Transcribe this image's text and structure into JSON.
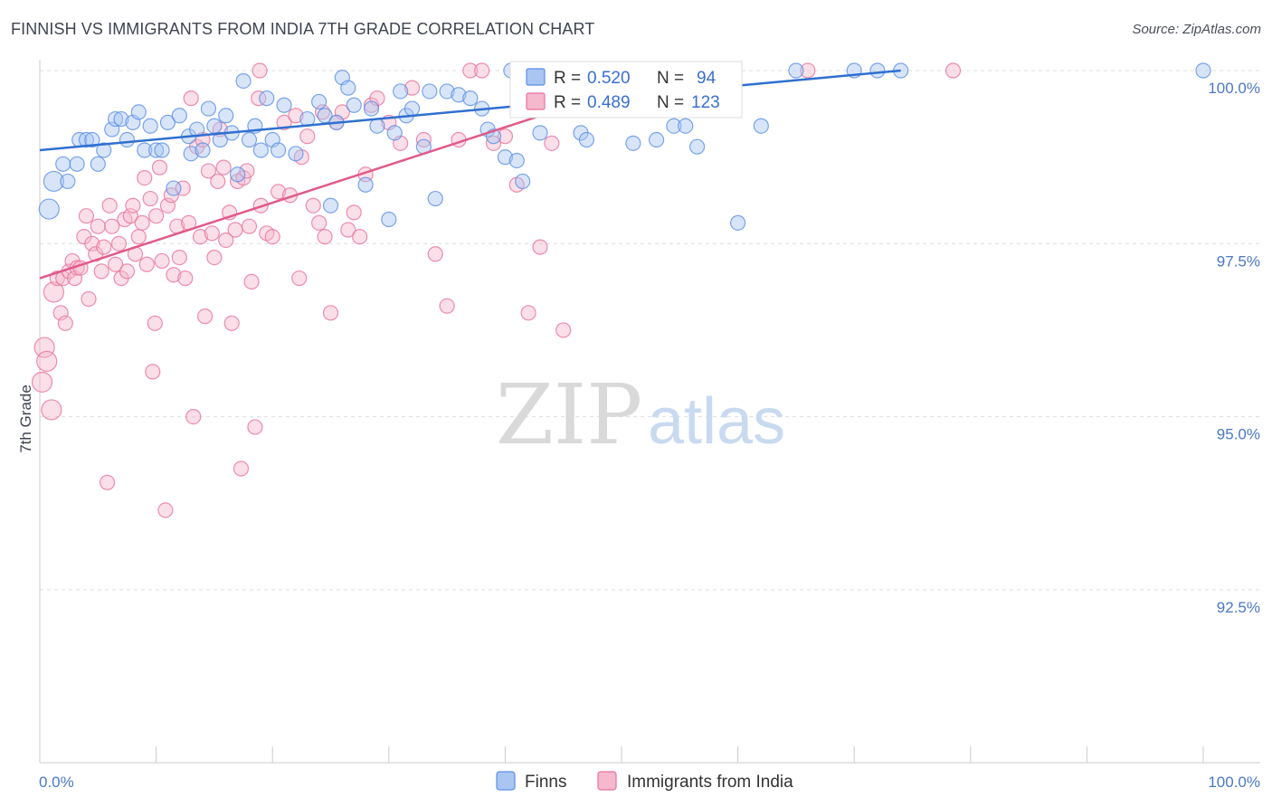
{
  "title": "FINNISH VS IMMIGRANTS FROM INDIA 7TH GRADE CORRELATION CHART",
  "source": "Source: ZipAtlas.com",
  "watermark": {
    "zip": "ZIP",
    "atlas": "atlas"
  },
  "colors": {
    "finns": "#5b8fe6",
    "finns_fill": "#a9c5f2",
    "india": "#e8729c",
    "india_fill": "#f5b8cc",
    "tick": "#4a78c8",
    "grid": "#dddddd"
  },
  "legend_top": {
    "finns": {
      "r_label": "R = ",
      "r_value": "0.520",
      "n_label": "N = ",
      "n_value": "94"
    },
    "india": {
      "r_label": "R = ",
      "r_value": "0.489",
      "n_label": "N = ",
      "n_value": "123"
    }
  },
  "chart_data": {
    "type": "scatter",
    "title": "FINNISH VS IMMIGRANTS FROM INDIA 7TH GRADE CORRELATION CHART",
    "xlabel": "",
    "ylabel": "7th Grade",
    "xlim": [
      0,
      100
    ],
    "ylim": [
      90.5,
      100.4
    ],
    "x_tick_labels": [
      "0.0%",
      "100.0%"
    ],
    "y_ticks": [
      {
        "value": 100.0,
        "label": "100.0%"
      },
      {
        "value": 97.5,
        "label": "97.5%"
      },
      {
        "value": 95.0,
        "label": "95.0%"
      },
      {
        "value": 92.5,
        "label": "92.5%"
      }
    ],
    "legend": [
      "Finns",
      "Immigrants from India"
    ],
    "series": [
      {
        "name": "Finns",
        "r": 0.52,
        "n": 94,
        "trend": {
          "x": [
            0,
            74
          ],
          "y": [
            98.85,
            100.0
          ]
        },
        "points": [
          [
            0.8,
            98.0
          ],
          [
            1.2,
            98.4
          ],
          [
            2.0,
            98.65
          ],
          [
            2.4,
            98.4
          ],
          [
            3.2,
            98.65
          ],
          [
            3.4,
            99.0
          ],
          [
            4.0,
            99.0
          ],
          [
            4.5,
            99.0
          ],
          [
            5.0,
            98.65
          ],
          [
            5.5,
            98.85
          ],
          [
            6.2,
            99.15
          ],
          [
            6.5,
            99.3
          ],
          [
            7.0,
            99.3
          ],
          [
            7.5,
            99.0
          ],
          [
            8.0,
            99.25
          ],
          [
            8.5,
            99.4
          ],
          [
            9.0,
            98.85
          ],
          [
            9.5,
            99.2
          ],
          [
            10.0,
            98.85
          ],
          [
            10.5,
            98.85
          ],
          [
            11.0,
            99.25
          ],
          [
            11.5,
            98.3
          ],
          [
            12.0,
            99.35
          ],
          [
            12.8,
            99.05
          ],
          [
            13.0,
            98.8
          ],
          [
            13.5,
            99.15
          ],
          [
            14.0,
            98.85
          ],
          [
            14.5,
            99.45
          ],
          [
            15.0,
            99.2
          ],
          [
            15.5,
            99.0
          ],
          [
            16.0,
            99.35
          ],
          [
            16.5,
            99.1
          ],
          [
            17.0,
            98.5
          ],
          [
            17.5,
            99.85
          ],
          [
            18.0,
            99.0
          ],
          [
            18.5,
            99.2
          ],
          [
            19.0,
            98.85
          ],
          [
            19.5,
            99.6
          ],
          [
            20.0,
            99.0
          ],
          [
            20.5,
            98.85
          ],
          [
            21.0,
            99.5
          ],
          [
            22.0,
            98.8
          ],
          [
            23.0,
            99.3
          ],
          [
            24.0,
            99.55
          ],
          [
            24.5,
            99.35
          ],
          [
            25.0,
            98.05
          ],
          [
            25.5,
            99.25
          ],
          [
            26.0,
            99.9
          ],
          [
            26.5,
            99.75
          ],
          [
            27.0,
            99.5
          ],
          [
            28.0,
            98.35
          ],
          [
            28.5,
            99.45
          ],
          [
            29.0,
            99.2
          ],
          [
            30.0,
            97.85
          ],
          [
            30.5,
            99.1
          ],
          [
            31.0,
            99.7
          ],
          [
            31.5,
            99.35
          ],
          [
            32.0,
            99.45
          ],
          [
            33.0,
            98.9
          ],
          [
            33.5,
            99.7
          ],
          [
            34.0,
            98.15
          ],
          [
            35.0,
            99.7
          ],
          [
            36.0,
            99.65
          ],
          [
            37.0,
            99.6
          ],
          [
            38.0,
            99.45
          ],
          [
            38.5,
            99.15
          ],
          [
            39.0,
            99.05
          ],
          [
            40.0,
            98.75
          ],
          [
            41.0,
            98.7
          ],
          [
            41.5,
            98.4
          ],
          [
            42.0,
            100.0
          ],
          [
            43.0,
            99.1
          ],
          [
            44.0,
            99.65
          ],
          [
            45.0,
            100.0
          ],
          [
            45.5,
            99.45
          ],
          [
            46.5,
            99.1
          ],
          [
            47.0,
            99.0
          ],
          [
            48.0,
            99.65
          ],
          [
            49.0,
            100.0
          ],
          [
            50.0,
            99.5
          ],
          [
            51.0,
            98.95
          ],
          [
            53.0,
            99.0
          ],
          [
            54.5,
            99.2
          ],
          [
            55.5,
            99.2
          ],
          [
            56.5,
            98.9
          ],
          [
            57.0,
            100.0
          ],
          [
            60.0,
            97.8
          ],
          [
            62.0,
            99.2
          ],
          [
            65.0,
            100.0
          ],
          [
            70.0,
            100.0
          ],
          [
            72.0,
            100.0
          ],
          [
            74.0,
            100.0
          ],
          [
            100.0,
            100.0
          ],
          [
            40.5,
            100.0
          ],
          [
            43.5,
            100.0
          ]
        ]
      },
      {
        "name": "Immigrants from India",
        "r": 0.489,
        "n": 123,
        "trend": {
          "x": [
            0,
            55
          ],
          "y": [
            97.0,
            100.0
          ]
        },
        "points": [
          [
            0.2,
            95.5
          ],
          [
            0.4,
            96.0
          ],
          [
            0.6,
            95.8
          ],
          [
            1.0,
            95.1
          ],
          [
            1.2,
            96.8
          ],
          [
            1.5,
            97.0
          ],
          [
            1.8,
            96.5
          ],
          [
            2.0,
            97.0
          ],
          [
            2.2,
            96.35
          ],
          [
            2.5,
            97.1
          ],
          [
            2.8,
            97.25
          ],
          [
            3.0,
            97.0
          ],
          [
            3.2,
            97.15
          ],
          [
            3.5,
            97.15
          ],
          [
            3.8,
            97.6
          ],
          [
            4.0,
            97.9
          ],
          [
            4.2,
            96.7
          ],
          [
            4.5,
            97.5
          ],
          [
            4.8,
            97.35
          ],
          [
            5.0,
            97.75
          ],
          [
            5.3,
            97.1
          ],
          [
            5.5,
            97.45
          ],
          [
            5.8,
            94.05
          ],
          [
            6.0,
            98.05
          ],
          [
            6.2,
            97.75
          ],
          [
            6.5,
            97.2
          ],
          [
            6.8,
            97.5
          ],
          [
            7.0,
            97.0
          ],
          [
            7.3,
            97.85
          ],
          [
            7.5,
            97.1
          ],
          [
            7.8,
            97.9
          ],
          [
            8.0,
            98.05
          ],
          [
            8.2,
            97.35
          ],
          [
            8.5,
            97.6
          ],
          [
            8.8,
            97.8
          ],
          [
            9.0,
            98.45
          ],
          [
            9.2,
            97.2
          ],
          [
            9.5,
            98.15
          ],
          [
            9.7,
            95.65
          ],
          [
            9.9,
            96.35
          ],
          [
            10.0,
            97.9
          ],
          [
            10.3,
            98.6
          ],
          [
            10.5,
            97.25
          ],
          [
            10.8,
            93.65
          ],
          [
            11.0,
            98.05
          ],
          [
            11.3,
            98.2
          ],
          [
            11.5,
            97.05
          ],
          [
            11.8,
            97.75
          ],
          [
            12.0,
            97.3
          ],
          [
            12.3,
            98.3
          ],
          [
            12.5,
            97.0
          ],
          [
            12.8,
            97.8
          ],
          [
            13.0,
            99.6
          ],
          [
            13.2,
            95.0
          ],
          [
            13.5,
            98.9
          ],
          [
            13.8,
            97.6
          ],
          [
            14.0,
            99.0
          ],
          [
            14.2,
            96.45
          ],
          [
            14.5,
            98.55
          ],
          [
            14.8,
            97.65
          ],
          [
            15.0,
            97.3
          ],
          [
            15.3,
            98.4
          ],
          [
            15.5,
            99.15
          ],
          [
            15.8,
            98.6
          ],
          [
            16.0,
            97.55
          ],
          [
            16.3,
            97.95
          ],
          [
            16.5,
            96.35
          ],
          [
            16.8,
            97.7
          ],
          [
            17.0,
            98.4
          ],
          [
            17.3,
            94.25
          ],
          [
            17.5,
            98.45
          ],
          [
            17.8,
            98.55
          ],
          [
            18.0,
            97.75
          ],
          [
            18.2,
            96.95
          ],
          [
            18.5,
            94.85
          ],
          [
            18.8,
            99.6
          ],
          [
            19.0,
            98.05
          ],
          [
            19.5,
            97.65
          ],
          [
            20.0,
            97.6
          ],
          [
            20.5,
            98.25
          ],
          [
            21.0,
            99.25
          ],
          [
            21.5,
            98.2
          ],
          [
            22.0,
            99.35
          ],
          [
            22.3,
            97.0
          ],
          [
            22.5,
            98.75
          ],
          [
            23.0,
            99.05
          ],
          [
            23.5,
            98.05
          ],
          [
            24.0,
            97.8
          ],
          [
            24.3,
            99.4
          ],
          [
            24.5,
            97.6
          ],
          [
            25.0,
            96.5
          ],
          [
            25.5,
            99.25
          ],
          [
            26.0,
            99.4
          ],
          [
            26.5,
            97.7
          ],
          [
            27.0,
            97.95
          ],
          [
            27.5,
            97.6
          ],
          [
            28.0,
            98.5
          ],
          [
            28.5,
            99.5
          ],
          [
            29.0,
            99.6
          ],
          [
            30.0,
            99.25
          ],
          [
            31.0,
            98.95
          ],
          [
            32.0,
            99.75
          ],
          [
            33.0,
            99.0
          ],
          [
            34.0,
            97.35
          ],
          [
            35.0,
            96.6
          ],
          [
            36.0,
            99.0
          ],
          [
            37.0,
            100.0
          ],
          [
            38.0,
            100.0
          ],
          [
            39.0,
            98.95
          ],
          [
            40.0,
            99.05
          ],
          [
            41.0,
            98.35
          ],
          [
            42.0,
            96.5
          ],
          [
            43.0,
            97.45
          ],
          [
            44.0,
            98.95
          ],
          [
            45.0,
            96.25
          ],
          [
            46.0,
            100.0
          ],
          [
            48.0,
            99.6
          ],
          [
            50.0,
            100.0
          ],
          [
            52.0,
            100.0
          ],
          [
            54.0,
            100.0
          ],
          [
            55.0,
            100.0
          ],
          [
            66.0,
            100.0
          ],
          [
            78.5,
            100.0
          ],
          [
            18.9,
            100.0
          ]
        ]
      }
    ]
  },
  "bottom_legend": {
    "finns": "Finns",
    "india": "Immigrants from India"
  }
}
